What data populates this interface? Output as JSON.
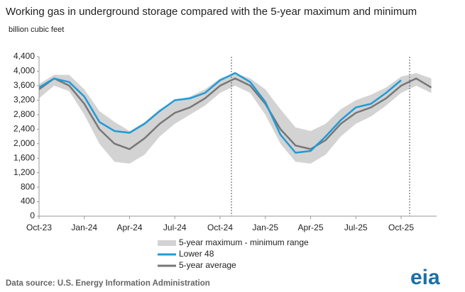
{
  "chart_data": {
    "type": "line",
    "title": "Working gas in underground  storage compared with the 5-year maximum and minimum",
    "y_label": "billion cubic feet",
    "categories": [
      "Oct-23",
      null,
      null,
      "Jan-24",
      null,
      null,
      "Apr-24",
      null,
      null,
      "Jul-24",
      null,
      null,
      "Oct-24",
      null,
      null,
      "Jan-25",
      null,
      null,
      "Apr-25",
      null,
      null,
      "Jul-25",
      null,
      null,
      "Oct-25",
      null,
      null
    ],
    "ylim": [
      0,
      4400
    ],
    "yticks": [
      0,
      400,
      800,
      {
        "value": 1200,
        "label": "1,200"
      },
      {
        "value": 1600,
        "label": "1,600"
      },
      {
        "value": 2000,
        "label": "2,000"
      },
      {
        "value": 2400,
        "label": "2,400"
      },
      {
        "value": 2800,
        "label": "2,800"
      },
      {
        "value": 3200,
        "label": "3,200"
      },
      {
        "value": 3600,
        "label": "3,600"
      },
      {
        "value": 4000,
        "label": "4,000"
      },
      {
        "value": 4400,
        "label": "4,400"
      }
    ],
    "series": [
      {
        "name": "5-year maximum - minimum range",
        "color": "#d3d3d3",
        "high": [
          3650,
          3900,
          3900,
          3500,
          2900,
          2600,
          2350,
          2600,
          2950,
          3200,
          3300,
          3500,
          3800,
          3950,
          3800,
          3500,
          2950,
          2450,
          2350,
          2550,
          2950,
          3200,
          3350,
          3550,
          3850,
          3950,
          3800
        ],
        "low": [
          3250,
          3600,
          3450,
          2800,
          2000,
          1500,
          1450,
          1700,
          2200,
          2550,
          2800,
          3050,
          3400,
          3600,
          3400,
          2800,
          2000,
          1500,
          1450,
          1700,
          2200,
          2550,
          2750,
          3050,
          3400,
          3600,
          3400
        ]
      },
      {
        "name": "Lower 48",
        "color": "#1f9bd7",
        "values": [
          3550,
          3800,
          3700,
          3300,
          2600,
          2350,
          2300,
          2550,
          2900,
          3200,
          3250,
          3400,
          3750,
          3950,
          3700,
          3150,
          2250,
          1750,
          1800,
          2200,
          2650,
          3000,
          3100,
          3400,
          3750,
          null,
          null
        ]
      },
      {
        "name": "5-year average",
        "color": "#777777",
        "values": [
          3500,
          3800,
          3600,
          3100,
          2400,
          2000,
          1850,
          2150,
          2550,
          2850,
          3000,
          3250,
          3600,
          3800,
          3600,
          3100,
          2400,
          1950,
          1850,
          2100,
          2550,
          2850,
          3000,
          3250,
          3600,
          3800,
          3550
        ]
      }
    ],
    "source": "Data source: U.S. Energy Information Administration",
    "logo": "eia"
  }
}
